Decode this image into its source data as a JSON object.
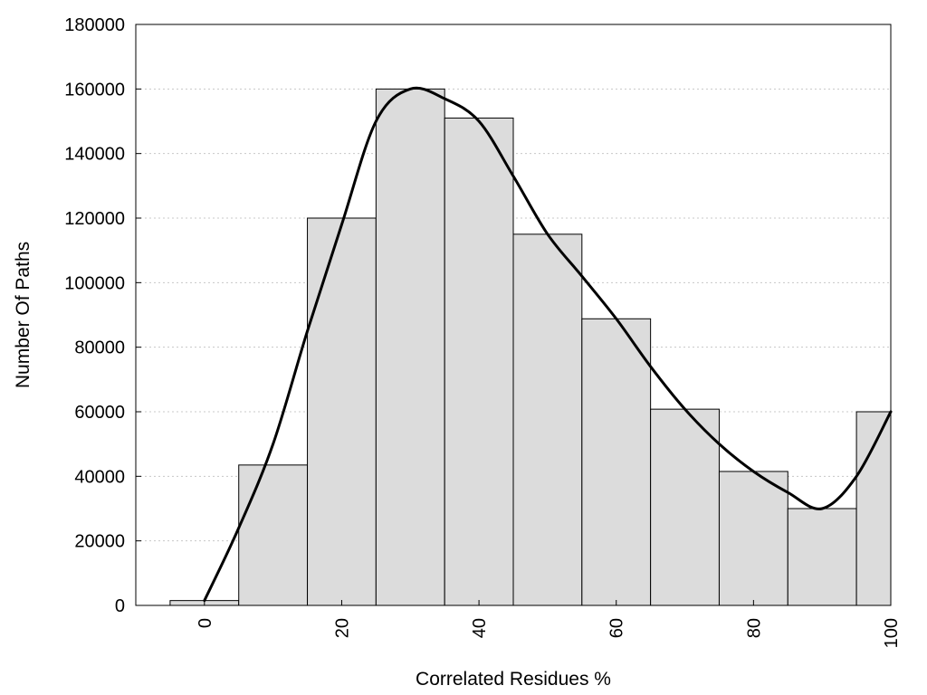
{
  "chart_data": {
    "type": "bar",
    "title": "",
    "xlabel": "Correlated Residues %",
    "ylabel": "Number Of Paths",
    "x": [
      0,
      10,
      20,
      30,
      40,
      50,
      60,
      70,
      80,
      90,
      100
    ],
    "values": [
      1500,
      43500,
      120000,
      160000,
      151000,
      115000,
      88800,
      60800,
      41500,
      30000,
      60000
    ],
    "bin_width": 10,
    "xlim": [
      -10,
      100
    ],
    "ylim": [
      0,
      180000
    ],
    "x_ticks": [
      "0",
      "20",
      "40",
      "60",
      "80",
      "100"
    ],
    "x_tick_values": [
      0,
      20,
      40,
      60,
      80,
      100
    ],
    "y_ticks": [
      "0",
      "20000",
      "40000",
      "60000",
      "80000",
      "100000",
      "120000",
      "140000",
      "160000",
      "180000"
    ],
    "y_tick_values": [
      0,
      20000,
      40000,
      60000,
      80000,
      100000,
      120000,
      140000,
      160000,
      180000
    ],
    "curve": {
      "x": [
        0,
        5,
        10,
        15,
        20,
        25,
        30,
        35,
        40,
        45,
        50,
        55,
        60,
        65,
        70,
        75,
        80,
        85,
        90,
        95,
        100
      ],
      "y": [
        1500,
        24000,
        50000,
        85000,
        118000,
        150000,
        160000,
        157000,
        150000,
        133000,
        115000,
        102000,
        88800,
        74000,
        60800,
        50000,
        41500,
        35000,
        30000,
        40000,
        60000
      ]
    },
    "grid": true,
    "bar_color": "#dcdcdc",
    "bar_edge_color": "#000000",
    "curve_color": "#000000"
  }
}
